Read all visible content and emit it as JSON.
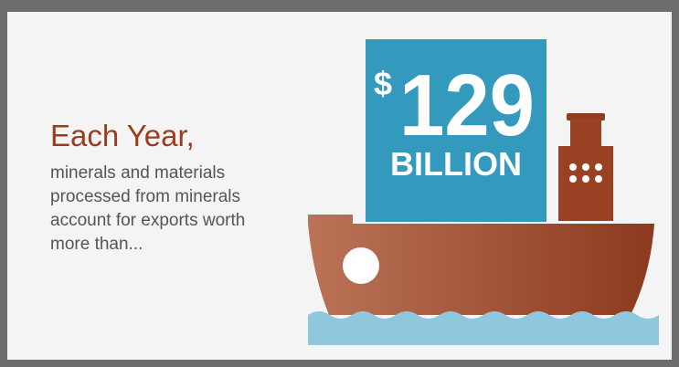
{
  "headline": "Each Year,",
  "body_lines": [
    "minerals and materials",
    "processed from minerals",
    "account for exports worth",
    "more than..."
  ],
  "amount": {
    "currency": "$",
    "number": "129",
    "unit": "BILLION"
  }
}
